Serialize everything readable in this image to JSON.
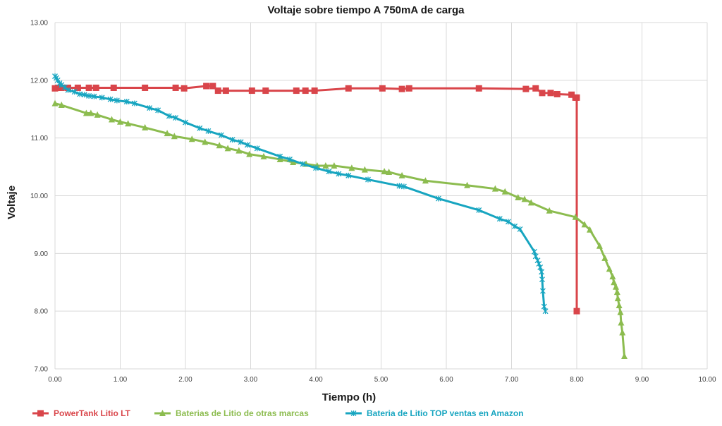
{
  "chart_data": {
    "type": "line",
    "title": "Voltaje sobre tiempo A 750mA de carga",
    "xlabel": "Tiempo (h)",
    "ylabel": "Voltaje",
    "xlim": [
      0,
      10
    ],
    "ylim": [
      7,
      13
    ],
    "x_ticks": [
      "0.00",
      "1.00",
      "2.00",
      "3.00",
      "4.00",
      "5.00",
      "6.00",
      "7.00",
      "8.00",
      "9.00",
      "10.00"
    ],
    "y_ticks": [
      "7.00",
      "8.00",
      "9.00",
      "10.00",
      "11.00",
      "12.00",
      "13.00"
    ],
    "grid": true,
    "legend_position": "bottom",
    "series": [
      {
        "name": "PowerTank Litio LT",
        "color": "#d9454a",
        "marker": "square",
        "x": [
          0.0,
          0.05,
          0.1,
          0.2,
          0.35,
          0.52,
          0.63,
          0.9,
          1.38,
          1.85,
          1.98,
          2.32,
          2.42,
          2.5,
          2.62,
          3.02,
          3.23,
          3.7,
          3.84,
          3.98,
          4.5,
          5.02,
          5.32,
          5.43,
          6.5,
          7.22,
          7.37,
          7.47,
          7.6,
          7.7,
          7.92,
          7.98,
          8.0,
          8.0
        ],
        "y": [
          11.86,
          11.87,
          11.87,
          11.87,
          11.87,
          11.87,
          11.87,
          11.87,
          11.87,
          11.87,
          11.86,
          11.9,
          11.9,
          11.82,
          11.82,
          11.82,
          11.82,
          11.82,
          11.82,
          11.82,
          11.86,
          11.86,
          11.85,
          11.86,
          11.86,
          11.85,
          11.86,
          11.78,
          11.78,
          11.76,
          11.75,
          11.7,
          11.7,
          8.0
        ]
      },
      {
        "name": "Baterias de Litio de otras marcas",
        "color": "#8cbc4f",
        "marker": "triangle",
        "x": [
          0.0,
          0.1,
          0.48,
          0.55,
          0.65,
          0.87,
          1.0,
          1.12,
          1.38,
          1.72,
          1.83,
          2.1,
          2.3,
          2.52,
          2.65,
          2.82,
          2.98,
          3.2,
          3.45,
          3.65,
          3.85,
          4.02,
          4.15,
          4.28,
          4.55,
          4.75,
          5.05,
          5.12,
          5.32,
          5.68,
          6.32,
          6.75,
          6.9,
          7.1,
          7.2,
          7.3,
          7.58,
          7.98,
          8.12,
          8.2,
          8.35,
          8.43,
          8.5,
          8.55,
          8.57,
          8.6,
          8.62,
          8.63,
          8.65,
          8.67,
          8.68,
          8.7,
          8.73
        ],
        "y": [
          11.6,
          11.57,
          11.43,
          11.43,
          11.4,
          11.32,
          11.28,
          11.25,
          11.18,
          11.08,
          11.03,
          10.98,
          10.93,
          10.87,
          10.82,
          10.78,
          10.72,
          10.68,
          10.63,
          10.58,
          10.55,
          10.52,
          10.52,
          10.52,
          10.48,
          10.45,
          10.42,
          10.41,
          10.35,
          10.26,
          10.18,
          10.12,
          10.07,
          9.97,
          9.94,
          9.88,
          9.74,
          9.63,
          9.5,
          9.41,
          9.13,
          8.92,
          8.73,
          8.6,
          8.5,
          8.42,
          8.33,
          8.22,
          8.1,
          7.98,
          7.8,
          7.63,
          7.22
        ]
      },
      {
        "name": "Bateria de Litio TOP ventas en Amazon",
        "color": "#17a5c0",
        "marker": "asterisk",
        "x": [
          0.0,
          0.02,
          0.04,
          0.07,
          0.1,
          0.15,
          0.2,
          0.3,
          0.38,
          0.45,
          0.52,
          0.6,
          0.72,
          0.85,
          0.95,
          1.1,
          1.22,
          1.45,
          1.58,
          1.75,
          1.85,
          2.0,
          2.22,
          2.35,
          2.55,
          2.72,
          2.85,
          2.95,
          3.1,
          3.45,
          3.6,
          3.8,
          4.0,
          4.2,
          4.35,
          4.5,
          4.8,
          5.28,
          5.35,
          5.88,
          6.5,
          6.82,
          6.95,
          7.05,
          7.13,
          7.35,
          7.37,
          7.4,
          7.42,
          7.44,
          7.46,
          7.47,
          7.48,
          7.5,
          7.52
        ],
        "y": [
          12.07,
          12.04,
          12.0,
          11.95,
          11.92,
          11.88,
          11.83,
          11.8,
          11.76,
          11.75,
          11.73,
          11.72,
          11.7,
          11.67,
          11.65,
          11.63,
          11.6,
          11.52,
          11.48,
          11.38,
          11.35,
          11.27,
          11.17,
          11.12,
          11.05,
          10.97,
          10.93,
          10.88,
          10.82,
          10.68,
          10.63,
          10.55,
          10.48,
          10.42,
          10.38,
          10.35,
          10.28,
          10.17,
          10.16,
          9.95,
          9.75,
          9.6,
          9.55,
          9.47,
          9.42,
          9.03,
          8.95,
          8.88,
          8.82,
          8.76,
          8.68,
          8.55,
          8.35,
          8.08,
          8.0
        ]
      }
    ]
  }
}
